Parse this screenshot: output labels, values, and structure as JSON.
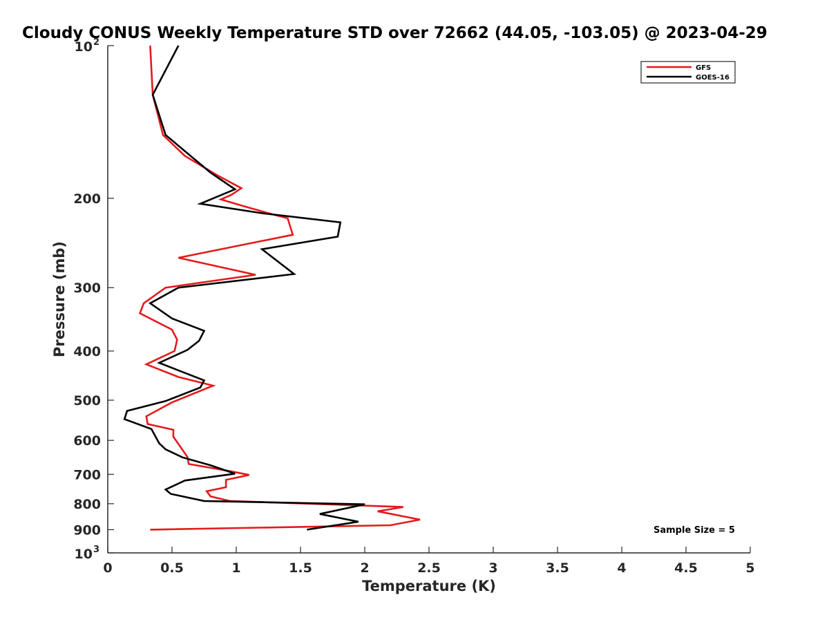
{
  "chart_data": {
    "type": "line",
    "title": "Cloudy CONUS Weekly Temperature STD over 72662 (44.05, -103.05) @ 2023-04-29",
    "xlabel": "Temperature (K)",
    "ylabel": "Pressure (mb)",
    "xlim": [
      0,
      5
    ],
    "ylim": [
      100,
      1000
    ],
    "y_scale": "log",
    "y_reversed": true,
    "grid": false,
    "legend_position": "top-right",
    "annotation": "Sample Size = 5",
    "x_ticks": [
      {
        "value": 0,
        "label": "0"
      },
      {
        "value": 0.5,
        "label": "0.5"
      },
      {
        "value": 1,
        "label": "1"
      },
      {
        "value": 1.5,
        "label": "1.5"
      },
      {
        "value": 2,
        "label": "2"
      },
      {
        "value": 2.5,
        "label": "2.5"
      },
      {
        "value": 3,
        "label": "3"
      },
      {
        "value": 3.5,
        "label": "3.5"
      },
      {
        "value": 4,
        "label": "4"
      },
      {
        "value": 4.5,
        "label": "4.5"
      },
      {
        "value": 5,
        "label": "5"
      }
    ],
    "y_ticks": [
      {
        "value": 100,
        "label": "10",
        "sup": "2"
      },
      {
        "value": 200,
        "label": "200",
        "sup": ""
      },
      {
        "value": 300,
        "label": "300",
        "sup": ""
      },
      {
        "value": 400,
        "label": "400",
        "sup": ""
      },
      {
        "value": 500,
        "label": "500",
        "sup": ""
      },
      {
        "value": 600,
        "label": "600",
        "sup": ""
      },
      {
        "value": 700,
        "label": "700",
        "sup": ""
      },
      {
        "value": 800,
        "label": "800",
        "sup": ""
      },
      {
        "value": 900,
        "label": "900",
        "sup": ""
      },
      {
        "value": 1000,
        "label": "10",
        "sup": "3"
      }
    ],
    "series": [
      {
        "name": "GFS",
        "color": "#e41a1c",
        "points": [
          {
            "x": 0.33,
            "y": 100
          },
          {
            "x": 0.35,
            "y": 125
          },
          {
            "x": 0.43,
            "y": 150
          },
          {
            "x": 0.6,
            "y": 165
          },
          {
            "x": 0.85,
            "y": 180
          },
          {
            "x": 1.04,
            "y": 191
          },
          {
            "x": 0.96,
            "y": 197
          },
          {
            "x": 0.88,
            "y": 201
          },
          {
            "x": 1.05,
            "y": 207
          },
          {
            "x": 1.25,
            "y": 214
          },
          {
            "x": 1.4,
            "y": 219
          },
          {
            "x": 1.44,
            "y": 236
          },
          {
            "x": 0.55,
            "y": 262
          },
          {
            "x": 1.15,
            "y": 283
          },
          {
            "x": 0.45,
            "y": 300
          },
          {
            "x": 0.28,
            "y": 322
          },
          {
            "x": 0.25,
            "y": 337
          },
          {
            "x": 0.5,
            "y": 363
          },
          {
            "x": 0.54,
            "y": 380
          },
          {
            "x": 0.52,
            "y": 400
          },
          {
            "x": 0.3,
            "y": 425
          },
          {
            "x": 0.55,
            "y": 450
          },
          {
            "x": 0.82,
            "y": 468
          },
          {
            "x": 0.5,
            "y": 505
          },
          {
            "x": 0.3,
            "y": 538
          },
          {
            "x": 0.31,
            "y": 557
          },
          {
            "x": 0.51,
            "y": 572
          },
          {
            "x": 0.51,
            "y": 590
          },
          {
            "x": 0.62,
            "y": 647
          },
          {
            "x": 0.63,
            "y": 668
          },
          {
            "x": 0.95,
            "y": 690
          },
          {
            "x": 1.1,
            "y": 702
          },
          {
            "x": 0.92,
            "y": 718
          },
          {
            "x": 0.92,
            "y": 742
          },
          {
            "x": 0.77,
            "y": 756
          },
          {
            "x": 0.8,
            "y": 774
          },
          {
            "x": 0.95,
            "y": 790
          },
          {
            "x": 2.3,
            "y": 812
          },
          {
            "x": 2.1,
            "y": 828
          },
          {
            "x": 2.43,
            "y": 860
          },
          {
            "x": 2.2,
            "y": 882
          },
          {
            "x": 0.33,
            "y": 900
          }
        ]
      },
      {
        "name": "GOES-16",
        "color": "#000000",
        "points": [
          {
            "x": 0.55,
            "y": 100
          },
          {
            "x": 0.35,
            "y": 125
          },
          {
            "x": 0.45,
            "y": 150
          },
          {
            "x": 0.8,
            "y": 178
          },
          {
            "x": 0.99,
            "y": 192
          },
          {
            "x": 0.72,
            "y": 205
          },
          {
            "x": 1.2,
            "y": 214
          },
          {
            "x": 1.81,
            "y": 223
          },
          {
            "x": 1.79,
            "y": 238
          },
          {
            "x": 1.2,
            "y": 252
          },
          {
            "x": 1.45,
            "y": 282
          },
          {
            "x": 0.55,
            "y": 300
          },
          {
            "x": 0.33,
            "y": 322
          },
          {
            "x": 0.5,
            "y": 345
          },
          {
            "x": 0.75,
            "y": 365
          },
          {
            "x": 0.71,
            "y": 382
          },
          {
            "x": 0.62,
            "y": 398
          },
          {
            "x": 0.4,
            "y": 422
          },
          {
            "x": 0.75,
            "y": 457
          },
          {
            "x": 0.72,
            "y": 472
          },
          {
            "x": 0.45,
            "y": 502
          },
          {
            "x": 0.15,
            "y": 525
          },
          {
            "x": 0.13,
            "y": 545
          },
          {
            "x": 0.34,
            "y": 570
          },
          {
            "x": 0.4,
            "y": 608
          },
          {
            "x": 0.45,
            "y": 625
          },
          {
            "x": 0.58,
            "y": 648
          },
          {
            "x": 0.8,
            "y": 672
          },
          {
            "x": 0.99,
            "y": 698
          },
          {
            "x": 0.6,
            "y": 720
          },
          {
            "x": 0.45,
            "y": 750
          },
          {
            "x": 0.49,
            "y": 765
          },
          {
            "x": 0.75,
            "y": 790
          },
          {
            "x": 2.0,
            "y": 802
          },
          {
            "x": 1.65,
            "y": 838
          },
          {
            "x": 1.95,
            "y": 868
          },
          {
            "x": 1.55,
            "y": 900
          }
        ]
      }
    ]
  }
}
